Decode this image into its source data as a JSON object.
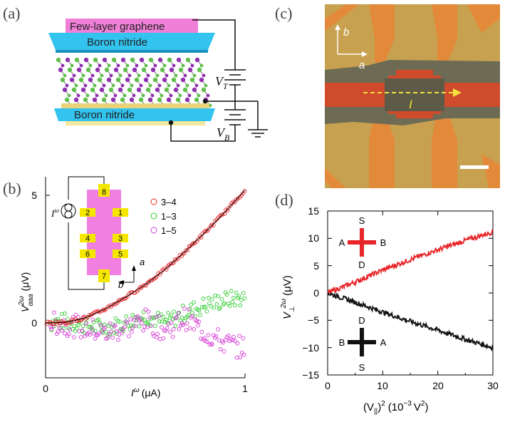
{
  "panel_labels": {
    "a": "(a)",
    "b": "(b)",
    "c": "(c)",
    "d": "(d)"
  },
  "panel_a": {
    "top_layer": "Few-layer graphene",
    "top_bn": "Boron nitride",
    "bottom_bn": "Boron nitride",
    "vt": "V",
    "vt_sub": "T",
    "vb": "V",
    "vb_sub": "B"
  },
  "panel_c": {
    "axis_b": "b",
    "axis_a": "a",
    "current_label": "I",
    "colors": {
      "substrate": "#c7a14f",
      "flake": "#6e6b55",
      "channel": "#cf4b2c",
      "leads": "#e38a3a"
    }
  },
  "chart_data": [
    {
      "type": "scatter",
      "panel": "b",
      "xlabel_main": "I",
      "xlabel_sup": "ω",
      "xlabel_unit": "(μA)",
      "ylabel_main": "V",
      "ylabel_sup": "2ω",
      "ylabel_sub": "αaa",
      "ylabel_unit": "(μV)",
      "xlim": [
        0,
        1
      ],
      "ylim": [
        -1.8,
        5.8
      ],
      "xticks": [
        "0",
        "1"
      ],
      "yticks": [
        "0",
        "5"
      ],
      "legend_position": "top-right",
      "inset": {
        "contacts": [
          "8",
          "2",
          "1",
          "4",
          "3",
          "6",
          "5",
          "7"
        ],
        "source_label": "I",
        "source_sup": "ω",
        "axis_a": "a",
        "axis_b": "b"
      },
      "series": [
        {
          "name": "3–4",
          "color": "#e8262a",
          "x": [
            0.0,
            0.1,
            0.2,
            0.3,
            0.4,
            0.5,
            0.6,
            0.7,
            0.8,
            0.9,
            1.0
          ],
          "y": [
            0.0,
            0.02,
            0.2,
            0.55,
            1.0,
            1.5,
            2.1,
            2.8,
            3.55,
            4.35,
            5.2
          ]
        },
        {
          "name": "1–3",
          "color": "#2ecc2e",
          "x": [
            0.0,
            0.1,
            0.2,
            0.3,
            0.4,
            0.5,
            0.6,
            0.7,
            0.8,
            0.9,
            1.0
          ],
          "y": [
            0.0,
            0.05,
            -0.1,
            -0.2,
            0.0,
            0.3,
            0.0,
            0.4,
            0.7,
            0.9,
            1.0
          ]
        },
        {
          "name": "1–5",
          "color": "#d63ad6",
          "x": [
            0.0,
            0.1,
            0.2,
            0.3,
            0.4,
            0.5,
            0.6,
            0.7,
            0.8,
            0.9,
            1.0
          ],
          "y": [
            0.0,
            -0.05,
            -0.2,
            -0.4,
            -0.2,
            0.1,
            -0.3,
            0.2,
            -0.4,
            -0.8,
            -1.0
          ]
        }
      ]
    },
    {
      "type": "line",
      "panel": "d",
      "xlabel_main": "(V",
      "xlabel_sub": "||",
      "xlabel_rest": ")",
      "xlabel_sup": "2",
      "xlabel_unit": "(10",
      "xlabel_unit_exp": "−3",
      "xlabel_unit_rest": "V",
      "xlabel_unit_sup": "2",
      "xlabel_unit_close": ")",
      "ylabel_main": "V",
      "ylabel_sub": "⊥",
      "ylabel_sup": "2ω",
      "ylabel_unit": "(μV)",
      "xlim": [
        0,
        30
      ],
      "ylim": [
        -15,
        15
      ],
      "xticks": [
        "0",
        "10",
        "20",
        "30"
      ],
      "yticks": [
        "15",
        "10",
        "5",
        "0",
        "−5",
        "−10",
        "−15"
      ],
      "insets": {
        "red": {
          "top": "S",
          "left": "A",
          "right": "B",
          "bottom": "D"
        },
        "black": {
          "top": "D",
          "left": "B",
          "right": "A",
          "bottom": "S"
        }
      },
      "series": [
        {
          "name": "",
          "color": "#e8262a",
          "x": [
            0,
            5,
            10,
            15,
            20,
            25,
            30
          ],
          "y": [
            0.0,
            2.0,
            4.2,
            6.1,
            7.9,
            9.6,
            11.2
          ]
        },
        {
          "name": "",
          "color": "#111111",
          "x": [
            0,
            5,
            10,
            15,
            20,
            25,
            30
          ],
          "y": [
            0.0,
            -1.7,
            -3.5,
            -5.2,
            -6.8,
            -8.5,
            -10.0
          ]
        }
      ]
    }
  ]
}
